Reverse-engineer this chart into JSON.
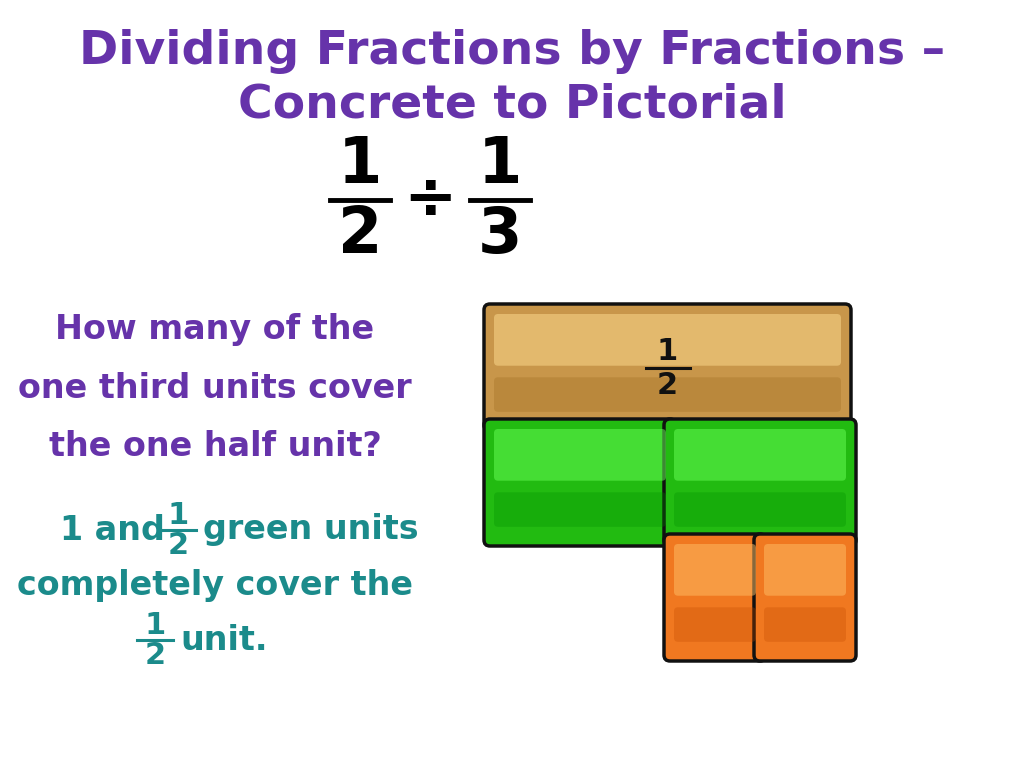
{
  "title_line1": "Dividing Fractions by Fractions –",
  "title_line2": "Concrete to Pictorial",
  "title_color": "#6633AA",
  "title_fontsize": 34,
  "equation_color": "#000000",
  "equation_fontsize": 46,
  "question_text_lines": [
    "How many of the",
    "one third units cover",
    "the one half unit?"
  ],
  "question_color": "#6633AA",
  "question_fontsize": 24,
  "answer_color": "#1B8B8B",
  "answer_fontsize": 24,
  "bg_color": "#FFFFFF",
  "tan_color": "#C8964A",
  "green_color": "#22BB11",
  "orange_color": "#F07820",
  "border_color": "#111111"
}
